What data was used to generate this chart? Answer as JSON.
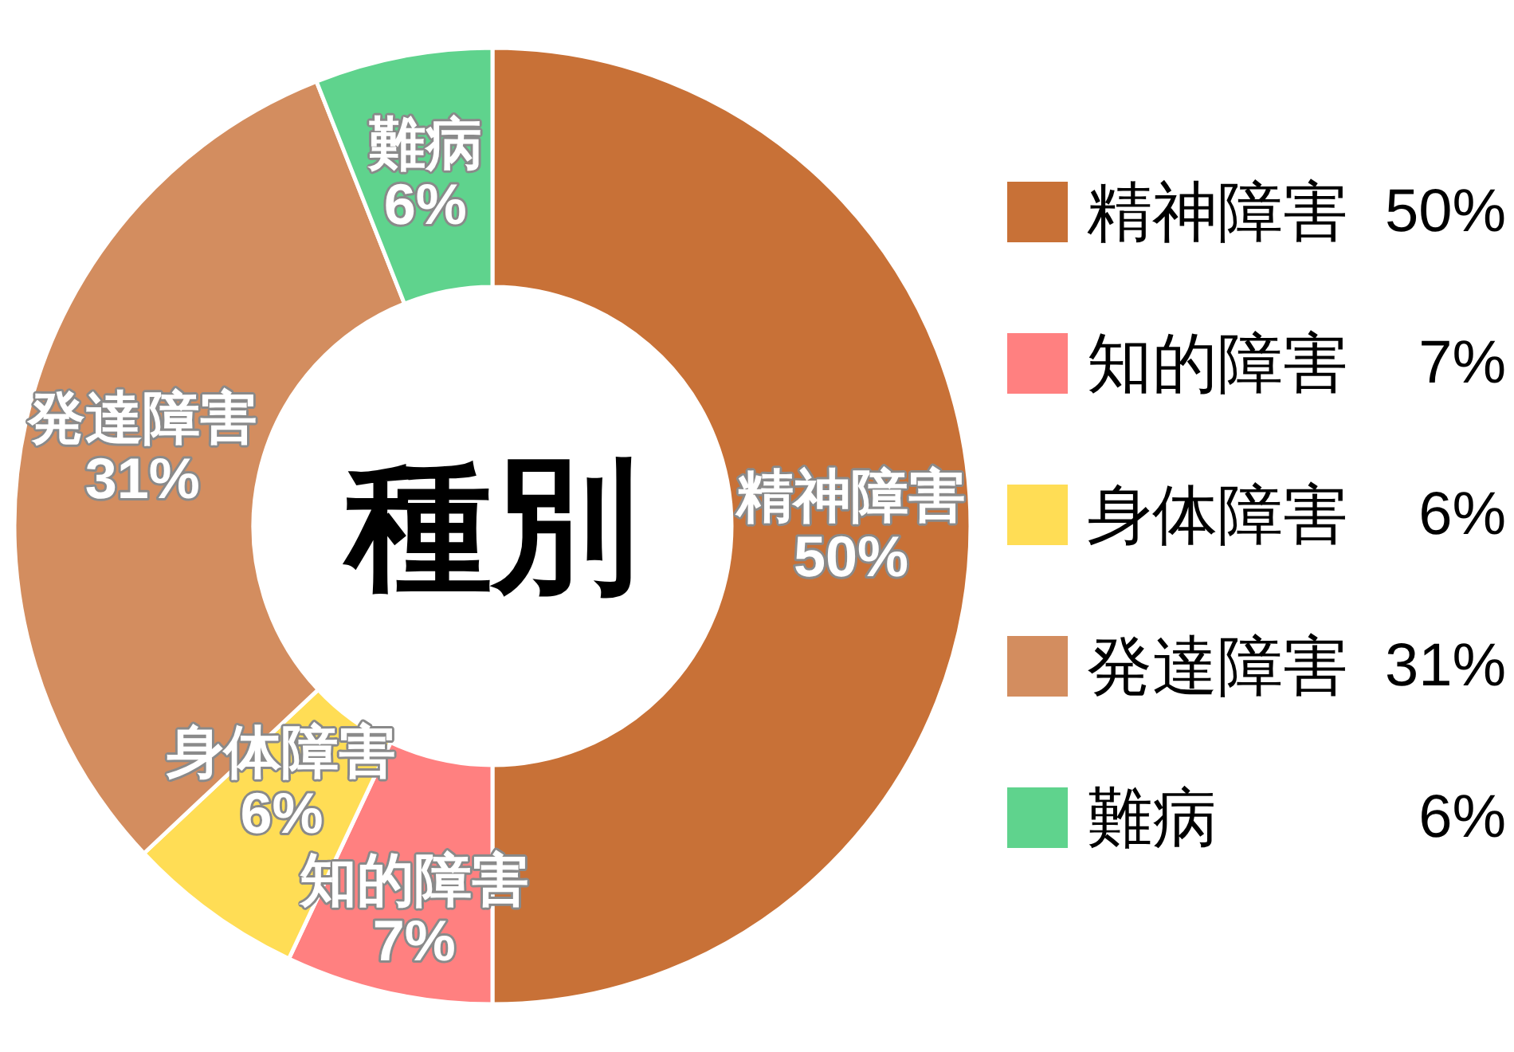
{
  "chart_data": {
    "type": "donut",
    "title": "種別",
    "categories": [
      "精神障害",
      "知的障害",
      "身体障害",
      "発達障害",
      "難病"
    ],
    "values": [
      50,
      7,
      6,
      31,
      6
    ],
    "colors": [
      "#c87137",
      "#ff8080",
      "#ffdd55",
      "#d38d5f",
      "#5fd38d"
    ],
    "value_labels": [
      "50%",
      "7%",
      "6%",
      "31%",
      "6%"
    ],
    "legend": "right"
  }
}
